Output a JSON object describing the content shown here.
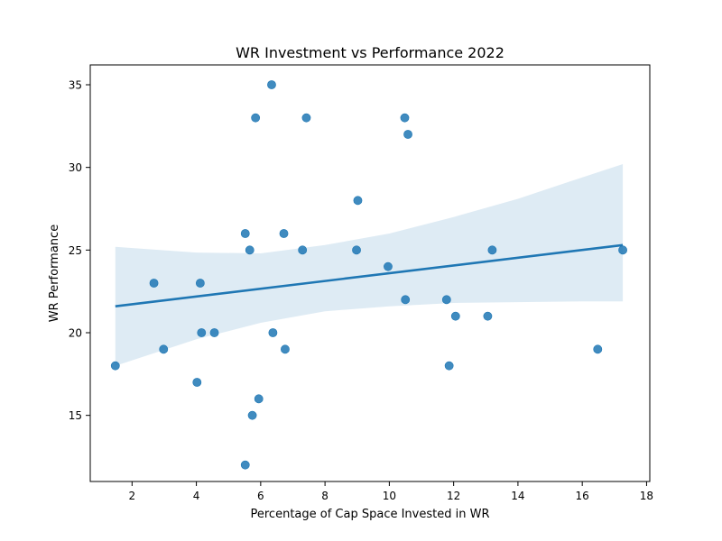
{
  "chart_data": {
    "type": "scatter",
    "title": "WR Investment vs Performance 2022",
    "xlabel": "Percentage of Cap Space Invested in WR",
    "ylabel": "WR Performance",
    "xlim": [
      0.7,
      18.1
    ],
    "ylim": [
      11,
      36.2
    ],
    "xticks": [
      2,
      4,
      6,
      8,
      10,
      12,
      14,
      16,
      18
    ],
    "yticks": [
      15,
      20,
      25,
      30,
      35
    ],
    "grid": false,
    "legend": "none",
    "colors": {
      "points": "#1f77b4",
      "band": "#1f77b4"
    },
    "points": [
      {
        "x": 1.48,
        "y": 18
      },
      {
        "x": 2.68,
        "y": 23
      },
      {
        "x": 2.98,
        "y": 19
      },
      {
        "x": 4.02,
        "y": 17
      },
      {
        "x": 4.12,
        "y": 23
      },
      {
        "x": 4.16,
        "y": 20
      },
      {
        "x": 4.56,
        "y": 20
      },
      {
        "x": 5.52,
        "y": 26
      },
      {
        "x": 5.52,
        "y": 12
      },
      {
        "x": 5.66,
        "y": 25
      },
      {
        "x": 5.74,
        "y": 15
      },
      {
        "x": 5.84,
        "y": 33
      },
      {
        "x": 5.94,
        "y": 16
      },
      {
        "x": 6.34,
        "y": 35
      },
      {
        "x": 6.38,
        "y": 20
      },
      {
        "x": 6.72,
        "y": 26
      },
      {
        "x": 6.76,
        "y": 19
      },
      {
        "x": 7.3,
        "y": 25
      },
      {
        "x": 7.42,
        "y": 33
      },
      {
        "x": 8.98,
        "y": 25
      },
      {
        "x": 9.02,
        "y": 28
      },
      {
        "x": 9.96,
        "y": 24
      },
      {
        "x": 10.48,
        "y": 33
      },
      {
        "x": 10.5,
        "y": 22
      },
      {
        "x": 10.58,
        "y": 32
      },
      {
        "x": 11.78,
        "y": 22
      },
      {
        "x": 11.86,
        "y": 18
      },
      {
        "x": 12.06,
        "y": 21
      },
      {
        "x": 13.06,
        "y": 21
      },
      {
        "x": 13.2,
        "y": 25
      },
      {
        "x": 16.48,
        "y": 19
      },
      {
        "x": 17.26,
        "y": 25
      }
    ],
    "regression": {
      "line": [
        {
          "x": 1.48,
          "y": 21.6
        },
        {
          "x": 17.26,
          "y": 25.3
        }
      ],
      "ci_band": [
        {
          "x": 1.48,
          "lower": 18.0,
          "upper": 25.2
        },
        {
          "x": 4.0,
          "lower": 19.6,
          "upper": 24.85
        },
        {
          "x": 6.0,
          "lower": 20.6,
          "upper": 24.8
        },
        {
          "x": 8.0,
          "lower": 21.3,
          "upper": 25.3
        },
        {
          "x": 10.0,
          "lower": 21.6,
          "upper": 26.0
        },
        {
          "x": 12.0,
          "lower": 21.8,
          "upper": 27.0
        },
        {
          "x": 14.0,
          "lower": 21.85,
          "upper": 28.1
        },
        {
          "x": 16.0,
          "lower": 21.9,
          "upper": 29.4
        },
        {
          "x": 17.26,
          "lower": 21.9,
          "upper": 30.2
        }
      ]
    }
  }
}
